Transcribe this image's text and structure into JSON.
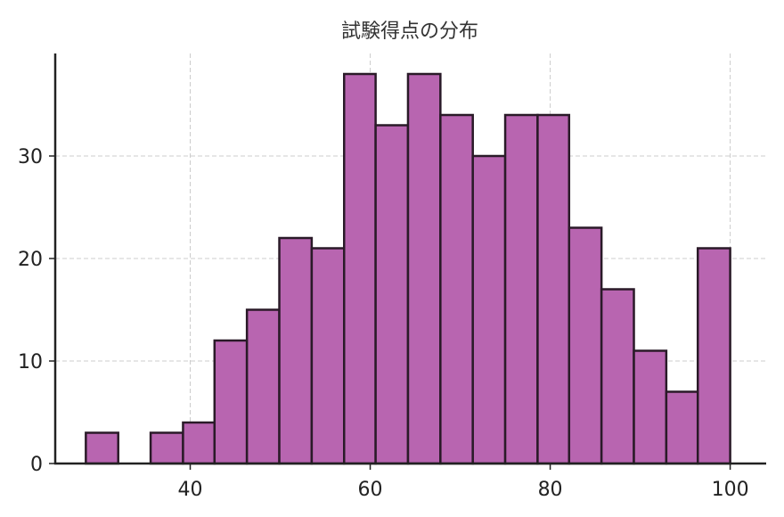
{
  "chart_data": {
    "type": "bar",
    "subtype": "histogram",
    "title": "試験得点の分布",
    "xlabel": "",
    "ylabel": "",
    "xlim": [
      25,
      104
    ],
    "ylim": [
      0,
      40
    ],
    "xticks": [
      40,
      60,
      80,
      100
    ],
    "yticks": [
      0,
      10,
      20,
      30
    ],
    "grid": true,
    "colors": {
      "bar_fill": "#b865b0",
      "bar_edge": "#2a1a28"
    },
    "bins": [
      {
        "x0": 28.4,
        "x1": 32.0,
        "count": 3
      },
      {
        "x0": 32.0,
        "x1": 35.6,
        "count": 0
      },
      {
        "x0": 35.6,
        "x1": 39.2,
        "count": 3
      },
      {
        "x0": 39.2,
        "x1": 42.7,
        "count": 4
      },
      {
        "x0": 42.7,
        "x1": 46.3,
        "count": 12
      },
      {
        "x0": 46.3,
        "x1": 49.9,
        "count": 15
      },
      {
        "x0": 49.9,
        "x1": 53.5,
        "count": 22
      },
      {
        "x0": 53.5,
        "x1": 57.1,
        "count": 21
      },
      {
        "x0": 57.1,
        "x1": 60.6,
        "count": 38
      },
      {
        "x0": 60.6,
        "x1": 64.2,
        "count": 33
      },
      {
        "x0": 64.2,
        "x1": 67.8,
        "count": 38
      },
      {
        "x0": 67.8,
        "x1": 71.4,
        "count": 34
      },
      {
        "x0": 71.4,
        "x1": 75.0,
        "count": 30
      },
      {
        "x0": 75.0,
        "x1": 78.6,
        "count": 34
      },
      {
        "x0": 78.6,
        "x1": 82.1,
        "count": 34
      },
      {
        "x0": 82.1,
        "x1": 85.7,
        "count": 23
      },
      {
        "x0": 85.7,
        "x1": 89.3,
        "count": 17
      },
      {
        "x0": 89.3,
        "x1": 92.9,
        "count": 11
      },
      {
        "x0": 92.9,
        "x1": 96.4,
        "count": 7
      },
      {
        "x0": 96.4,
        "x1": 100.0,
        "count": 21
      }
    ]
  }
}
